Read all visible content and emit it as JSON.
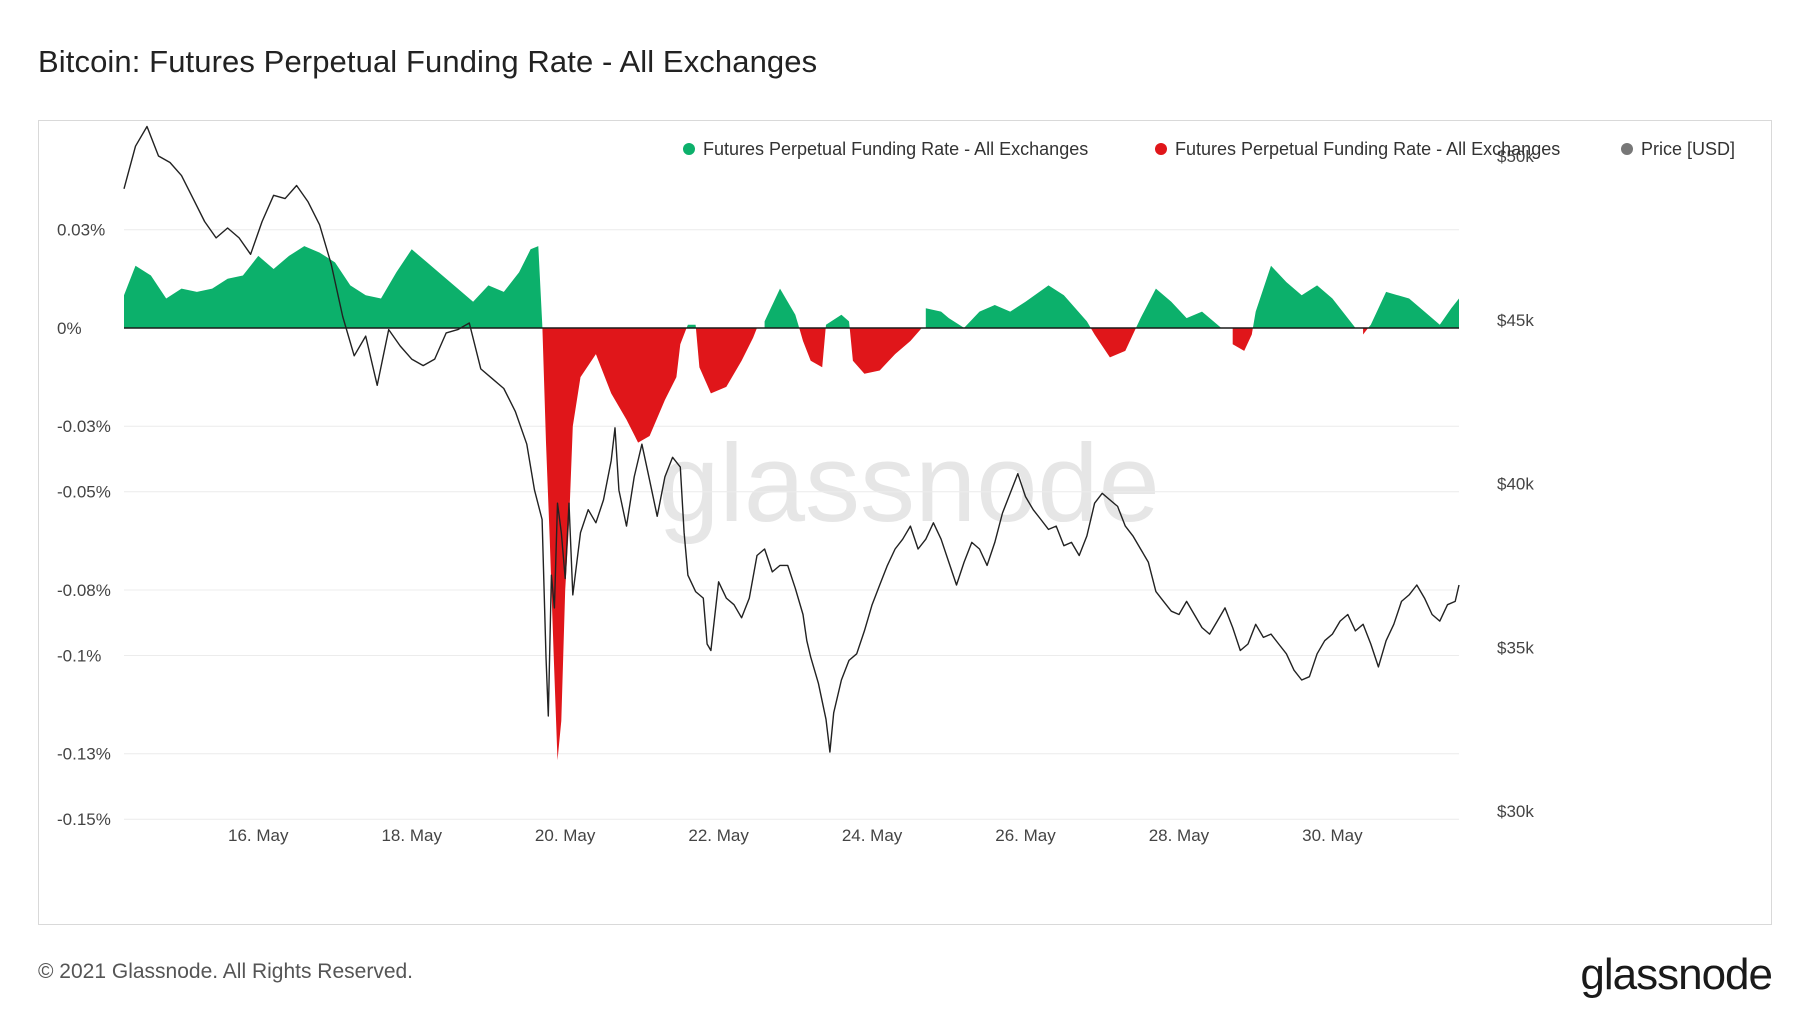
{
  "page": {
    "title": "Bitcoin: Futures Perpetual Funding Rate - All Exchanges",
    "footer": "© 2021 Glassnode. All Rights Reserved.",
    "brand": "glassnode",
    "watermark": "glassnode"
  },
  "chart_data": {
    "type": "area",
    "legend": [
      {
        "label": "Futures Perpetual Funding Rate - All Exchanges",
        "color": "#0cb06b"
      },
      {
        "label": "Futures Perpetual Funding Rate - All Exchanges",
        "color": "#e0161a"
      },
      {
        "label": "Price [USD]",
        "color": "#777777"
      }
    ],
    "legend_position": "top-right",
    "colors": {
      "positive": "#0cb06b",
      "negative": "#e0161a",
      "price": "#222222",
      "grid": "#ececec"
    },
    "x_ticks": [
      {
        "day": 16,
        "label": "16. May"
      },
      {
        "day": 18,
        "label": "18. May"
      },
      {
        "day": 20,
        "label": "20. May"
      },
      {
        "day": 22,
        "label": "22. May"
      },
      {
        "day": 24,
        "label": "24. May"
      },
      {
        "day": 26,
        "label": "26. May"
      },
      {
        "day": 28,
        "label": "28. May"
      },
      {
        "day": 30,
        "label": "30. May"
      }
    ],
    "x_range_days": [
      14.25,
      31.65
    ],
    "y_left": {
      "range": [
        -0.1475,
        0.0525
      ],
      "ticks": [
        {
          "v": 0.03,
          "label": "0.03%"
        },
        {
          "v": 0,
          "label": "0%"
        },
        {
          "v": -0.03,
          "label": "-0.03%"
        },
        {
          "v": -0.05,
          "label": "-0.05%"
        },
        {
          "v": -0.08,
          "label": "-0.08%"
        },
        {
          "v": -0.1,
          "label": "-0.1%"
        },
        {
          "v": -0.13,
          "label": "-0.13%"
        },
        {
          "v": -0.15,
          "label": "-0.15%"
        }
      ]
    },
    "y_right": {
      "range": [
        30000,
        50000
      ],
      "ticks": [
        {
          "v": 50000,
          "label": "$50k"
        },
        {
          "v": 45000,
          "label": "$45k"
        },
        {
          "v": 40000,
          "label": "$40k"
        },
        {
          "v": 35000,
          "label": "$35k"
        },
        {
          "v": 30000,
          "label": "$30k"
        }
      ]
    },
    "funding_rate_pct": [
      [
        14.25,
        0.01
      ],
      [
        14.4,
        0.019
      ],
      [
        14.6,
        0.016
      ],
      [
        14.8,
        0.009
      ],
      [
        15.0,
        0.012
      ],
      [
        15.2,
        0.011
      ],
      [
        15.4,
        0.012
      ],
      [
        15.6,
        0.015
      ],
      [
        15.8,
        0.016
      ],
      [
        16.0,
        0.022
      ],
      [
        16.2,
        0.018
      ],
      [
        16.4,
        0.022
      ],
      [
        16.6,
        0.025
      ],
      [
        16.8,
        0.023
      ],
      [
        17.0,
        0.02
      ],
      [
        17.2,
        0.013
      ],
      [
        17.4,
        0.01
      ],
      [
        17.6,
        0.009
      ],
      [
        17.8,
        0.017
      ],
      [
        18.0,
        0.024
      ],
      [
        18.2,
        0.02
      ],
      [
        18.4,
        0.016
      ],
      [
        18.6,
        0.012
      ],
      [
        18.8,
        0.008
      ],
      [
        19.0,
        0.013
      ],
      [
        19.2,
        0.011
      ],
      [
        19.4,
        0.017
      ],
      [
        19.55,
        0.024
      ],
      [
        19.65,
        0.025
      ],
      [
        19.7,
        0.002
      ],
      [
        19.75,
        -0.035
      ],
      [
        19.8,
        -0.065
      ],
      [
        19.85,
        -0.1
      ],
      [
        19.9,
        -0.132
      ],
      [
        19.95,
        -0.12
      ],
      [
        20.0,
        -0.08
      ],
      [
        20.05,
        -0.06
      ],
      [
        20.1,
        -0.03
      ],
      [
        20.2,
        -0.015
      ],
      [
        20.4,
        -0.008
      ],
      [
        20.6,
        -0.02
      ],
      [
        20.8,
        -0.028
      ],
      [
        20.95,
        -0.035
      ],
      [
        21.1,
        -0.033
      ],
      [
        21.3,
        -0.022
      ],
      [
        21.45,
        -0.015
      ],
      [
        21.5,
        -0.005
      ],
      [
        21.6,
        0.001
      ],
      [
        21.7,
        0.001
      ],
      [
        21.75,
        -0.012
      ],
      [
        21.9,
        -0.02
      ],
      [
        22.1,
        -0.018
      ],
      [
        22.3,
        -0.01
      ],
      [
        22.45,
        -0.003
      ],
      [
        22.5,
        0.0
      ],
      [
        22.6,
        0.002
      ],
      [
        22.8,
        0.012
      ],
      [
        23.0,
        0.004
      ],
      [
        23.1,
        -0.004
      ],
      [
        23.2,
        -0.01
      ],
      [
        23.35,
        -0.012
      ],
      [
        23.4,
        0.001
      ],
      [
        23.6,
        0.004
      ],
      [
        23.7,
        0.002
      ],
      [
        23.75,
        -0.01
      ],
      [
        23.9,
        -0.014
      ],
      [
        24.1,
        -0.013
      ],
      [
        24.3,
        -0.008
      ],
      [
        24.5,
        -0.004
      ],
      [
        24.65,
        0.0
      ],
      [
        24.7,
        0.006
      ],
      [
        24.9,
        0.005
      ],
      [
        25.0,
        0.003
      ],
      [
        25.2,
        0.0
      ],
      [
        25.4,
        0.005
      ],
      [
        25.6,
        0.007
      ],
      [
        25.8,
        0.005
      ],
      [
        26.0,
        0.008
      ],
      [
        26.3,
        0.013
      ],
      [
        26.5,
        0.01
      ],
      [
        26.8,
        0.002
      ],
      [
        26.9,
        -0.002
      ],
      [
        27.1,
        -0.009
      ],
      [
        27.3,
        -0.007
      ],
      [
        27.4,
        -0.002
      ],
      [
        27.5,
        0.003
      ],
      [
        27.7,
        0.012
      ],
      [
        27.9,
        0.008
      ],
      [
        28.1,
        0.003
      ],
      [
        28.3,
        0.005
      ],
      [
        28.55,
        0.0
      ],
      [
        28.7,
        -0.005
      ],
      [
        28.85,
        -0.007
      ],
      [
        28.95,
        -0.002
      ],
      [
        29.0,
        0.005
      ],
      [
        29.2,
        0.019
      ],
      [
        29.4,
        0.014
      ],
      [
        29.6,
        0.01
      ],
      [
        29.8,
        0.013
      ],
      [
        30.0,
        0.009
      ],
      [
        30.3,
        0.0
      ],
      [
        30.4,
        -0.002
      ],
      [
        30.5,
        0.001
      ],
      [
        30.7,
        0.011
      ],
      [
        31.0,
        0.009
      ],
      [
        31.2,
        0.005
      ],
      [
        31.4,
        0.001
      ],
      [
        31.55,
        0.006
      ],
      [
        31.65,
        0.009
      ]
    ],
    "price_usd": [
      [
        14.25,
        49000
      ],
      [
        14.4,
        50300
      ],
      [
        14.55,
        50900
      ],
      [
        14.7,
        50000
      ],
      [
        14.85,
        49800
      ],
      [
        15.0,
        49400
      ],
      [
        15.15,
        48700
      ],
      [
        15.3,
        48000
      ],
      [
        15.45,
        47500
      ],
      [
        15.6,
        47800
      ],
      [
        15.75,
        47500
      ],
      [
        15.9,
        47000
      ],
      [
        16.05,
        48000
      ],
      [
        16.2,
        48800
      ],
      [
        16.35,
        48700
      ],
      [
        16.5,
        49100
      ],
      [
        16.65,
        48600
      ],
      [
        16.8,
        47900
      ],
      [
        16.95,
        46700
      ],
      [
        17.1,
        45100
      ],
      [
        17.25,
        43900
      ],
      [
        17.4,
        44500
      ],
      [
        17.55,
        43000
      ],
      [
        17.7,
        44700
      ],
      [
        17.85,
        44200
      ],
      [
        18.0,
        43800
      ],
      [
        18.15,
        43600
      ],
      [
        18.3,
        43800
      ],
      [
        18.45,
        44600
      ],
      [
        18.6,
        44700
      ],
      [
        18.75,
        44900
      ],
      [
        18.9,
        43500
      ],
      [
        19.05,
        43200
      ],
      [
        19.2,
        42900
      ],
      [
        19.35,
        42200
      ],
      [
        19.5,
        41200
      ],
      [
        19.6,
        39800
      ],
      [
        19.7,
        38900
      ],
      [
        19.75,
        34700
      ],
      [
        19.78,
        32900
      ],
      [
        19.82,
        37200
      ],
      [
        19.86,
        36200
      ],
      [
        19.9,
        39400
      ],
      [
        19.95,
        38500
      ],
      [
        20.0,
        37100
      ],
      [
        20.05,
        39400
      ],
      [
        20.1,
        36600
      ],
      [
        20.2,
        38500
      ],
      [
        20.3,
        39200
      ],
      [
        20.4,
        38800
      ],
      [
        20.5,
        39500
      ],
      [
        20.6,
        40700
      ],
      [
        20.65,
        41700
      ],
      [
        20.7,
        39800
      ],
      [
        20.8,
        38700
      ],
      [
        20.9,
        40200
      ],
      [
        21.0,
        41200
      ],
      [
        21.1,
        40100
      ],
      [
        21.2,
        39000
      ],
      [
        21.3,
        40200
      ],
      [
        21.4,
        40800
      ],
      [
        21.5,
        40500
      ],
      [
        21.55,
        38500
      ],
      [
        21.6,
        37200
      ],
      [
        21.7,
        36700
      ],
      [
        21.8,
        36500
      ],
      [
        21.85,
        35100
      ],
      [
        21.9,
        34900
      ],
      [
        22.0,
        37000
      ],
      [
        22.1,
        36500
      ],
      [
        22.2,
        36300
      ],
      [
        22.3,
        35900
      ],
      [
        22.4,
        36500
      ],
      [
        22.5,
        37800
      ],
      [
        22.6,
        38000
      ],
      [
        22.7,
        37300
      ],
      [
        22.8,
        37500
      ],
      [
        22.9,
        37500
      ],
      [
        23.0,
        36800
      ],
      [
        23.1,
        36000
      ],
      [
        23.15,
        35200
      ],
      [
        23.2,
        34700
      ],
      [
        23.3,
        33900
      ],
      [
        23.4,
        32800
      ],
      [
        23.45,
        31800
      ],
      [
        23.5,
        33000
      ],
      [
        23.6,
        34000
      ],
      [
        23.7,
        34600
      ],
      [
        23.8,
        34800
      ],
      [
        23.9,
        35500
      ],
      [
        24.0,
        36300
      ],
      [
        24.1,
        36900
      ],
      [
        24.2,
        37500
      ],
      [
        24.3,
        38000
      ],
      [
        24.4,
        38300
      ],
      [
        24.5,
        38700
      ],
      [
        24.6,
        38000
      ],
      [
        24.7,
        38300
      ],
      [
        24.8,
        38800
      ],
      [
        24.9,
        38300
      ],
      [
        25.0,
        37600
      ],
      [
        25.1,
        36900
      ],
      [
        25.2,
        37600
      ],
      [
        25.3,
        38200
      ],
      [
        25.4,
        38000
      ],
      [
        25.5,
        37500
      ],
      [
        25.6,
        38200
      ],
      [
        25.7,
        39100
      ],
      [
        25.8,
        39700
      ],
      [
        25.9,
        40300
      ],
      [
        26.0,
        39600
      ],
      [
        26.1,
        39200
      ],
      [
        26.2,
        38900
      ],
      [
        26.3,
        38600
      ],
      [
        26.4,
        38700
      ],
      [
        26.5,
        38100
      ],
      [
        26.6,
        38200
      ],
      [
        26.7,
        37800
      ],
      [
        26.8,
        38400
      ],
      [
        26.9,
        39400
      ],
      [
        27.0,
        39700
      ],
      [
        27.1,
        39500
      ],
      [
        27.2,
        39300
      ],
      [
        27.3,
        38700
      ],
      [
        27.4,
        38400
      ],
      [
        27.5,
        38000
      ],
      [
        27.6,
        37600
      ],
      [
        27.7,
        36700
      ],
      [
        27.8,
        36400
      ],
      [
        27.9,
        36100
      ],
      [
        28.0,
        36000
      ],
      [
        28.1,
        36400
      ],
      [
        28.2,
        36000
      ],
      [
        28.3,
        35600
      ],
      [
        28.4,
        35400
      ],
      [
        28.5,
        35800
      ],
      [
        28.6,
        36200
      ],
      [
        28.7,
        35600
      ],
      [
        28.8,
        34900
      ],
      [
        28.9,
        35100
      ],
      [
        29.0,
        35700
      ],
      [
        29.1,
        35300
      ],
      [
        29.2,
        35400
      ],
      [
        29.3,
        35100
      ],
      [
        29.4,
        34800
      ],
      [
        29.5,
        34300
      ],
      [
        29.6,
        34000
      ],
      [
        29.7,
        34100
      ],
      [
        29.8,
        34800
      ],
      [
        29.9,
        35200
      ],
      [
        30.0,
        35400
      ],
      [
        30.1,
        35800
      ],
      [
        30.2,
        36000
      ],
      [
        30.3,
        35500
      ],
      [
        30.4,
        35700
      ],
      [
        30.5,
        35100
      ],
      [
        30.6,
        34400
      ],
      [
        30.7,
        35200
      ],
      [
        30.8,
        35700
      ],
      [
        30.9,
        36400
      ],
      [
        31.0,
        36600
      ],
      [
        31.1,
        36900
      ],
      [
        31.2,
        36500
      ],
      [
        31.3,
        36000
      ],
      [
        31.4,
        35800
      ],
      [
        31.5,
        36300
      ],
      [
        31.6,
        36400
      ],
      [
        31.65,
        36900
      ]
    ]
  }
}
